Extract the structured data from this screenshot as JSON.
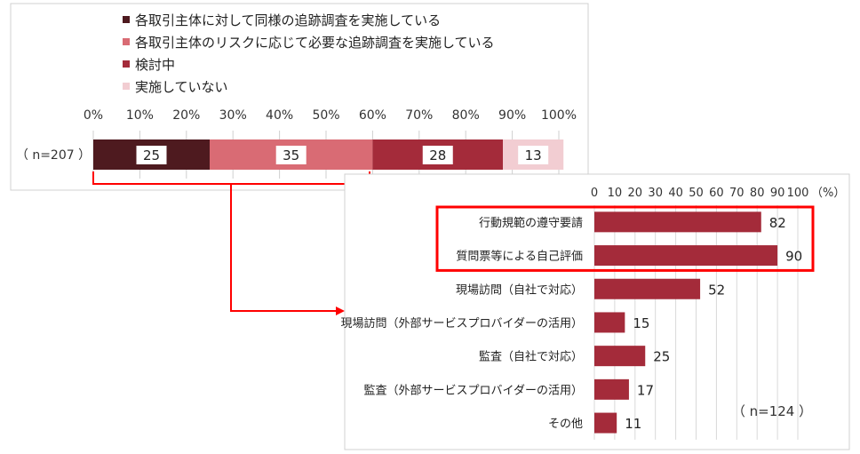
{
  "chart_data": [
    {
      "type": "bar",
      "orientation": "horizontal",
      "stacked": true,
      "categories": [
        "（ n=207 ）"
      ],
      "series": [
        {
          "name": "各取引主体に対して同様の追跡調査を実施している",
          "values": [
            25
          ],
          "color": "#4e1a1f"
        },
        {
          "name": "各取引主体のリスクに応じて必要な追跡調査を実施している",
          "values": [
            35
          ],
          "color": "#d96b74"
        },
        {
          "name": "検討中",
          "values": [
            28
          ],
          "color": "#a42b3a"
        },
        {
          "name": "実施していない",
          "values": [
            13
          ],
          "color": "#f2cdd2"
        }
      ],
      "xlim": [
        0,
        100
      ],
      "xticks": [
        "0%",
        "10%",
        "20%",
        "30%",
        "40%",
        "50%",
        "60%",
        "70%",
        "80%",
        "90%",
        "100%"
      ],
      "legend_position": "top-left",
      "grid": true
    },
    {
      "type": "bar",
      "orientation": "horizontal",
      "categories": [
        "行動規範の遵守要請",
        "質問票等による自己評価",
        "現場訪問（自社で対応）",
        "現場訪問（外部サービスプロバイダーの活用）",
        "監査（自社で対応）",
        "監査（外部サービスプロバイダーの活用）",
        "その他"
      ],
      "values": [
        82,
        90,
        52,
        15,
        25,
        17,
        11
      ],
      "color": "#a42b3a",
      "xlim": [
        0,
        100
      ],
      "xticks": [
        "0",
        "10",
        "20",
        "30",
        "40",
        "50",
        "60",
        "70",
        "80",
        "90",
        "100"
      ],
      "x_unit": "（%）",
      "n_label": "（ n=124 ）",
      "highlighted_categories": [
        "行動規範の遵守要請",
        "質問票等による自己評価"
      ],
      "highlight_color": "#ff0000",
      "grid": true
    }
  ]
}
